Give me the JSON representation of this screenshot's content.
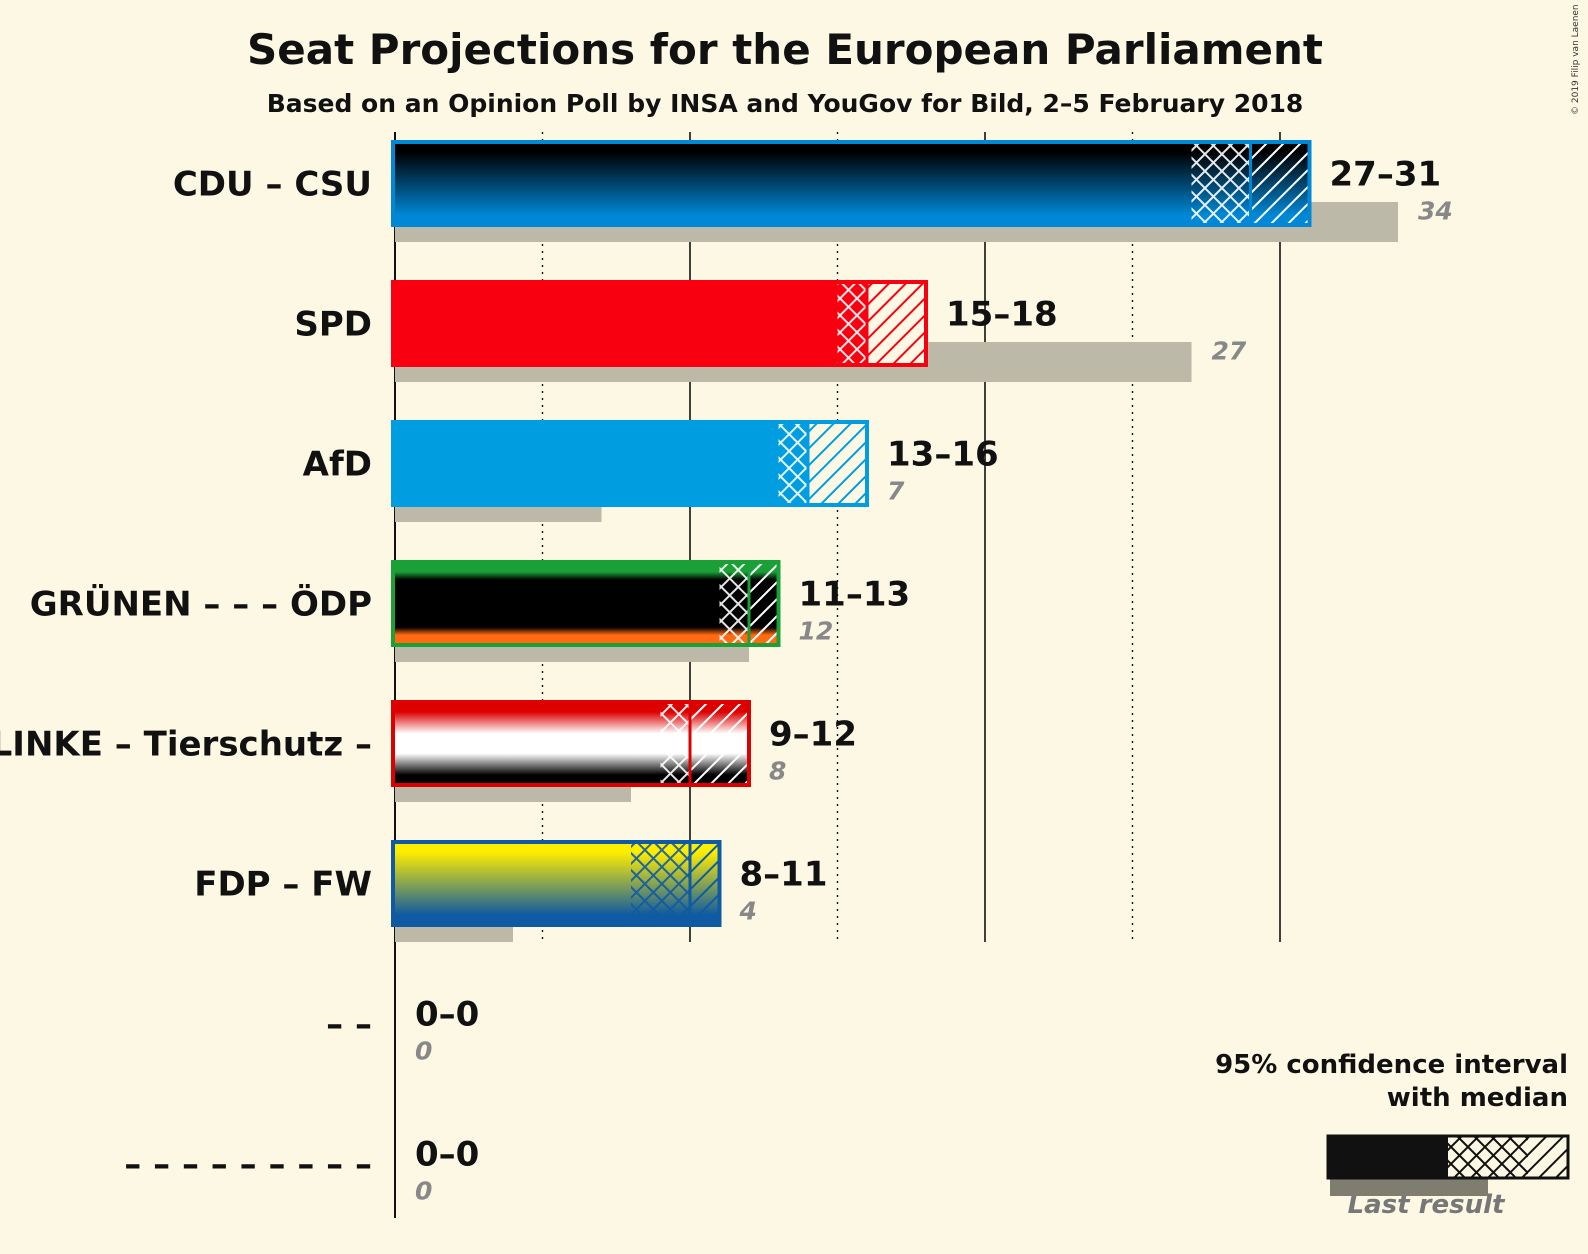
{
  "chart_data": {
    "type": "bar",
    "title": "Seat Projections for the European Parliament",
    "subtitle": "Based on an Opinion Poll by INSA and YouGov for Bild, 2–5 February 2018",
    "copyright": "© 2019 Filip van Laenen",
    "xlim": [
      0,
      34
    ],
    "legend": {
      "line1": "95% confidence interval",
      "line2": "with median",
      "last_result": "Last result",
      "placement": "bottom-right"
    },
    "parties": [
      {
        "label": "CDU – CSU",
        "low": 27,
        "q1": 27,
        "median": 29,
        "high": 31,
        "last": 34,
        "range_label": "27–31",
        "last_label": "34",
        "colors": [
          "#000000",
          "#0087d5"
        ]
      },
      {
        "label": "SPD",
        "low": 15,
        "q1": 15,
        "median": 16,
        "high": 18,
        "last": 27,
        "range_label": "15–18",
        "last_label": "27",
        "colors": [
          "#f90010"
        ]
      },
      {
        "label": "AfD",
        "low": 13,
        "q1": 13,
        "median": 14,
        "high": 16,
        "last": 7,
        "range_label": "13–16",
        "last_label": "7",
        "colors": [
          "#009ee0"
        ]
      },
      {
        "label": "GRÜNEN – – – ÖDP",
        "low": 11,
        "q1": 11,
        "median": 12,
        "high": 13,
        "last": 12,
        "range_label": "11–13",
        "last_label": "12",
        "colors": [
          "#1aa037",
          "#000000",
          "#000000",
          "#ff6a13"
        ]
      },
      {
        "label": "LINKE – Tierschutz –",
        "low": 9,
        "q1": 9,
        "median": 10,
        "high": 12,
        "last": 8,
        "range_label": "9–12",
        "last_label": "8",
        "colors": [
          "#dd0000",
          "#ffffff",
          "#000000"
        ]
      },
      {
        "label": "FDP – FW",
        "low": 8,
        "q1": 8,
        "median": 10,
        "high": 11,
        "last": 4,
        "range_label": "8–11",
        "last_label": "4",
        "colors": [
          "#ffed00",
          "#0f5aa2"
        ]
      },
      {
        "label": "– –",
        "low": 0,
        "q1": 0,
        "median": 0,
        "high": 0,
        "last": 0,
        "range_label": "0–0",
        "last_label": "0",
        "colors": [
          "#888888"
        ]
      },
      {
        "label": "– – – – – – – – –",
        "low": 0,
        "q1": 0,
        "median": 0,
        "high": 0,
        "last": 0,
        "range_label": "0–0",
        "last_label": "0",
        "colors": [
          "#888888"
        ]
      }
    ]
  }
}
